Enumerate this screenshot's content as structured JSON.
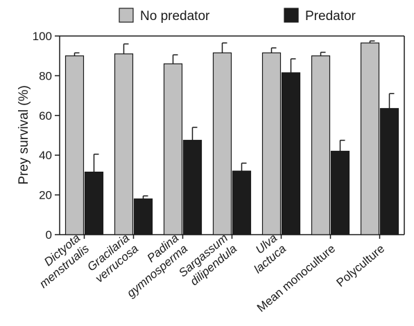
{
  "chart_data": {
    "type": "bar",
    "ylabel": "Prey survival (%)",
    "ylim": [
      0,
      100
    ],
    "yticks": [
      0,
      20,
      40,
      60,
      80,
      100
    ],
    "categories": [
      {
        "lines": [
          "Dictyota",
          "menstrualis"
        ],
        "italic": true
      },
      {
        "lines": [
          "Gracilaria",
          "verrucosa"
        ],
        "italic": true
      },
      {
        "lines": [
          "Padina",
          "gymnosperma"
        ],
        "italic": true
      },
      {
        "lines": [
          "Sargassum",
          "dilipendula"
        ],
        "italic": true
      },
      {
        "lines": [
          "Ulva",
          "lactuca"
        ],
        "italic": true
      },
      {
        "lines": [
          "Mean monoculture"
        ],
        "italic": false
      },
      {
        "lines": [
          "Polyculture"
        ],
        "italic": false
      }
    ],
    "series": [
      {
        "name": "No predator",
        "color": "#c0c0c0",
        "values": [
          90,
          91,
          86,
          91.5,
          91.5,
          90,
          96.5
        ],
        "errors": [
          1.5,
          5,
          4.5,
          5,
          2.5,
          1.8,
          1
        ]
      },
      {
        "name": "Predator",
        "color": "#1c1c1c",
        "values": [
          31.5,
          18,
          47.5,
          32,
          81.5,
          42,
          63.5
        ],
        "errors": [
          9,
          1.5,
          6.5,
          4,
          7,
          5.5,
          7.5
        ]
      }
    ],
    "legend_position": "top"
  }
}
